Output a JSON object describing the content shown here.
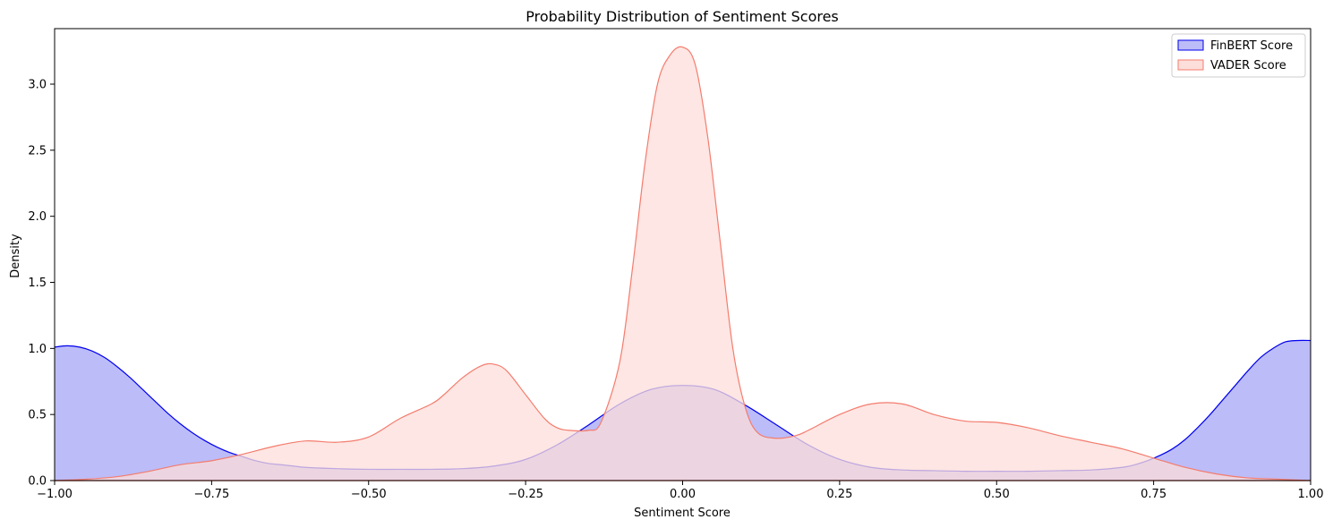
{
  "chart_data": {
    "type": "area",
    "title": "Probability Distribution of Sentiment Scores",
    "xlabel": "Sentiment Score",
    "ylabel": "Density",
    "xlim": [
      -1.0,
      1.0
    ],
    "ylim": [
      0,
      3.42
    ],
    "xticks": [
      -1.0,
      -0.75,
      -0.5,
      -0.25,
      0.0,
      0.25,
      0.5,
      0.75,
      1.0
    ],
    "xtick_labels": [
      "−1.00",
      "−0.75",
      "−0.50",
      "−0.25",
      "0.00",
      "0.25",
      "0.50",
      "0.75",
      "1.00"
    ],
    "yticks": [
      0.0,
      0.5,
      1.0,
      1.5,
      2.0,
      2.5,
      3.0
    ],
    "ytick_labels": [
      "0.0",
      "0.5",
      "1.0",
      "1.5",
      "2.0",
      "2.5",
      "3.0"
    ],
    "grid": false,
    "legend_position": "top-right",
    "series": [
      {
        "name": "FinBERT Score",
        "line_color": "#0000ee",
        "fill_color": "#bcbcf8",
        "x": [
          -1.0,
          -0.98,
          -0.96,
          -0.94,
          -0.92,
          -0.9,
          -0.88,
          -0.86,
          -0.84,
          -0.82,
          -0.8,
          -0.78,
          -0.76,
          -0.74,
          -0.72,
          -0.7,
          -0.68,
          -0.66,
          -0.64,
          -0.62,
          -0.6,
          -0.55,
          -0.5,
          -0.45,
          -0.4,
          -0.35,
          -0.3,
          -0.25,
          -0.2,
          -0.15,
          -0.1,
          -0.05,
          0.0,
          0.05,
          0.1,
          0.15,
          0.2,
          0.25,
          0.3,
          0.35,
          0.4,
          0.45,
          0.5,
          0.55,
          0.6,
          0.65,
          0.7,
          0.72,
          0.74,
          0.76,
          0.78,
          0.8,
          0.82,
          0.84,
          0.86,
          0.88,
          0.9,
          0.92,
          0.94,
          0.96,
          0.98,
          1.0
        ],
        "y": [
          1.01,
          1.02,
          1.01,
          0.98,
          0.93,
          0.86,
          0.78,
          0.69,
          0.6,
          0.51,
          0.43,
          0.36,
          0.3,
          0.25,
          0.21,
          0.18,
          0.15,
          0.13,
          0.12,
          0.11,
          0.1,
          0.09,
          0.085,
          0.085,
          0.085,
          0.09,
          0.11,
          0.16,
          0.27,
          0.42,
          0.58,
          0.69,
          0.72,
          0.69,
          0.57,
          0.42,
          0.27,
          0.16,
          0.1,
          0.08,
          0.075,
          0.07,
          0.07,
          0.07,
          0.075,
          0.08,
          0.1,
          0.12,
          0.15,
          0.19,
          0.24,
          0.31,
          0.4,
          0.5,
          0.61,
          0.72,
          0.83,
          0.93,
          1.0,
          1.05,
          1.06,
          1.06
        ]
      },
      {
        "name": "VADER Score",
        "line_color": "#f47c6e",
        "fill_color": "#fcdeda",
        "x": [
          -1.0,
          -0.95,
          -0.9,
          -0.85,
          -0.8,
          -0.75,
          -0.7,
          -0.65,
          -0.6,
          -0.55,
          -0.5,
          -0.45,
          -0.4,
          -0.38,
          -0.35,
          -0.32,
          -0.3,
          -0.28,
          -0.25,
          -0.22,
          -0.2,
          -0.18,
          -0.15,
          -0.13,
          -0.1,
          -0.08,
          -0.06,
          -0.04,
          -0.02,
          0.0,
          0.02,
          0.04,
          0.06,
          0.08,
          0.1,
          0.12,
          0.15,
          0.18,
          0.2,
          0.25,
          0.3,
          0.35,
          0.4,
          0.45,
          0.5,
          0.55,
          0.6,
          0.65,
          0.7,
          0.75,
          0.8,
          0.85,
          0.9,
          0.95,
          1.0
        ],
        "y": [
          0.0,
          0.01,
          0.03,
          0.07,
          0.12,
          0.15,
          0.2,
          0.26,
          0.3,
          0.29,
          0.33,
          0.47,
          0.58,
          0.65,
          0.78,
          0.87,
          0.88,
          0.83,
          0.65,
          0.47,
          0.4,
          0.38,
          0.38,
          0.44,
          0.9,
          1.6,
          2.4,
          3.0,
          3.22,
          3.28,
          3.15,
          2.6,
          1.8,
          1.0,
          0.55,
          0.36,
          0.32,
          0.34,
          0.38,
          0.5,
          0.58,
          0.58,
          0.5,
          0.45,
          0.44,
          0.4,
          0.34,
          0.29,
          0.24,
          0.17,
          0.1,
          0.05,
          0.02,
          0.01,
          0.0
        ]
      }
    ]
  }
}
